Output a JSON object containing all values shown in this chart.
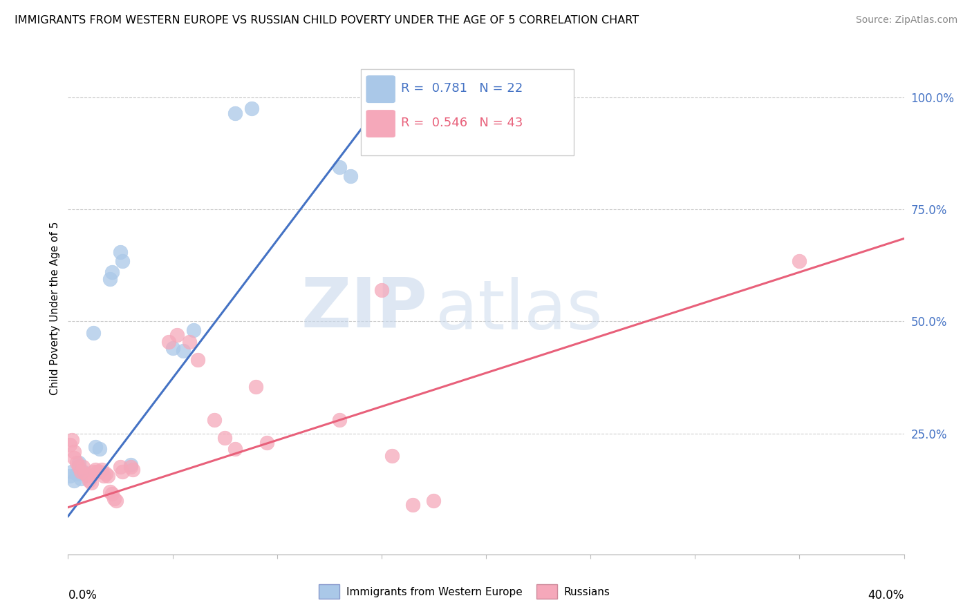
{
  "title": "IMMIGRANTS FROM WESTERN EUROPE VS RUSSIAN CHILD POVERTY UNDER THE AGE OF 5 CORRELATION CHART",
  "source": "Source: ZipAtlas.com",
  "ylabel": "Child Poverty Under the Age of 5",
  "right_y_ticks": [
    1.0,
    0.75,
    0.5,
    0.25
  ],
  "right_y_labels": [
    "100.0%",
    "75.0%",
    "50.0%",
    "25.0%"
  ],
  "xlim": [
    0.0,
    0.4
  ],
  "ylim": [
    -0.02,
    1.08
  ],
  "legend_blue_R": "R =  0.781",
  "legend_blue_N": "N = 22",
  "legend_pink_R": "R =  0.546",
  "legend_pink_N": "N = 43",
  "legend_label_blue": "Immigrants from Western Europe",
  "legend_label_pink": "Russians",
  "watermark_zip": "ZIP",
  "watermark_atlas": "atlas",
  "blue_color": "#aac8e8",
  "blue_edge_color": "#aac8e8",
  "pink_color": "#f5a8ba",
  "pink_edge_color": "#f5a8ba",
  "blue_line_color": "#4472c4",
  "pink_line_color": "#e8607a",
  "right_tick_color": "#4472c4",
  "source_color": "#888888",
  "blue_scatter": [
    [
      0.001,
      0.155
    ],
    [
      0.002,
      0.165
    ],
    [
      0.003,
      0.145
    ],
    [
      0.004,
      0.16
    ],
    [
      0.005,
      0.185
    ],
    [
      0.006,
      0.15
    ],
    [
      0.007,
      0.165
    ],
    [
      0.012,
      0.475
    ],
    [
      0.013,
      0.22
    ],
    [
      0.015,
      0.215
    ],
    [
      0.02,
      0.595
    ],
    [
      0.021,
      0.61
    ],
    [
      0.025,
      0.655
    ],
    [
      0.026,
      0.635
    ],
    [
      0.03,
      0.18
    ],
    [
      0.05,
      0.44
    ],
    [
      0.055,
      0.435
    ],
    [
      0.06,
      0.48
    ],
    [
      0.08,
      0.965
    ],
    [
      0.088,
      0.975
    ],
    [
      0.13,
      0.845
    ],
    [
      0.135,
      0.825
    ]
  ],
  "pink_scatter": [
    [
      0.001,
      0.225
    ],
    [
      0.002,
      0.235
    ],
    [
      0.003,
      0.21
    ],
    [
      0.003,
      0.195
    ],
    [
      0.004,
      0.185
    ],
    [
      0.005,
      0.175
    ],
    [
      0.006,
      0.165
    ],
    [
      0.007,
      0.175
    ],
    [
      0.008,
      0.16
    ],
    [
      0.009,
      0.155
    ],
    [
      0.01,
      0.145
    ],
    [
      0.011,
      0.14
    ],
    [
      0.012,
      0.165
    ],
    [
      0.013,
      0.17
    ],
    [
      0.014,
      0.165
    ],
    [
      0.015,
      0.165
    ],
    [
      0.016,
      0.17
    ],
    [
      0.017,
      0.155
    ],
    [
      0.018,
      0.16
    ],
    [
      0.019,
      0.155
    ],
    [
      0.02,
      0.12
    ],
    [
      0.021,
      0.115
    ],
    [
      0.022,
      0.105
    ],
    [
      0.023,
      0.1
    ],
    [
      0.025,
      0.175
    ],
    [
      0.026,
      0.165
    ],
    [
      0.03,
      0.175
    ],
    [
      0.031,
      0.17
    ],
    [
      0.048,
      0.455
    ],
    [
      0.052,
      0.47
    ],
    [
      0.058,
      0.455
    ],
    [
      0.062,
      0.415
    ],
    [
      0.07,
      0.28
    ],
    [
      0.075,
      0.24
    ],
    [
      0.08,
      0.215
    ],
    [
      0.09,
      0.355
    ],
    [
      0.095,
      0.23
    ],
    [
      0.13,
      0.28
    ],
    [
      0.15,
      0.57
    ],
    [
      0.155,
      0.2
    ],
    [
      0.165,
      0.09
    ],
    [
      0.175,
      0.1
    ],
    [
      0.35,
      0.635
    ]
  ],
  "blue_trendline_x": [
    0.0,
    0.155
  ],
  "blue_trendline_y": [
    0.065,
    1.02
  ],
  "pink_trendline_x": [
    0.0,
    0.4
  ],
  "pink_trendline_y": [
    0.085,
    0.685
  ]
}
